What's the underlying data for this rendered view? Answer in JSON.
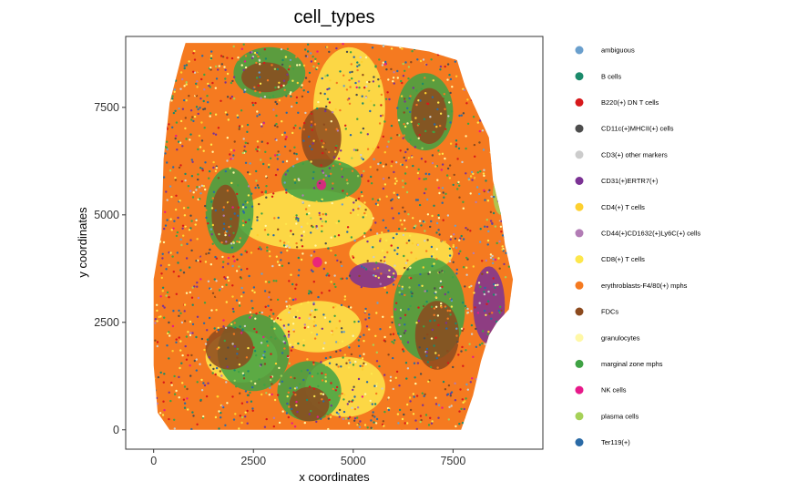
{
  "chart_data": {
    "type": "scatter",
    "title": "cell_types",
    "xlabel": "x coordinates",
    "ylabel": "y coordinates",
    "xlim": [
      -700,
      9750
    ],
    "ylim": [
      -450,
      9150
    ],
    "x_ticks": [
      0,
      2500,
      5000,
      7500
    ],
    "y_ticks": [
      0,
      2500,
      5000,
      7500
    ],
    "x_tick_labels": [
      "0",
      "2500",
      "5000",
      "7500"
    ],
    "y_tick_labels": [
      "0",
      "2500",
      "5000",
      "7500"
    ],
    "grid": false,
    "legend_position": "right",
    "legend": [
      {
        "name": "ambiguous",
        "color": "#6a9fcd"
      },
      {
        "name": "B cells",
        "color": "#1b8a6b"
      },
      {
        "name": "B220(+) DN T cells",
        "color": "#d7191c"
      },
      {
        "name": "CD11c(+)MHCII(+) cells",
        "color": "#4d4d4d"
      },
      {
        "name": "CD3(+) other markers",
        "color": "#cccccc"
      },
      {
        "name": "CD31(+)ERTR7(+)",
        "color": "#7b3294"
      },
      {
        "name": "CD4(+) T cells",
        "color": "#fdd02f"
      },
      {
        "name": "CD44(+)CD1632(+)Ly6C(+) cells",
        "color": "#b27cb5"
      },
      {
        "name": "CD8(+) T cells",
        "color": "#fde74c"
      },
      {
        "name": "erythroblasts-F4/80(+) mphs",
        "color": "#f57a20"
      },
      {
        "name": "FDCs",
        "color": "#8c4a1e"
      },
      {
        "name": "granulocytes",
        "color": "#fff8a6"
      },
      {
        "name": "marginal zone mphs",
        "color": "#3fa244"
      },
      {
        "name": "NK cells",
        "color": "#e7198a"
      },
      {
        "name": "plasma cells",
        "color": "#a6d158"
      },
      {
        "name": "Ter119(+)",
        "color": "#2a6aa6"
      }
    ],
    "tissue_outline": [
      [
        800,
        9000
      ],
      [
        4200,
        9000
      ],
      [
        5300,
        9000
      ],
      [
        6200,
        8900
      ],
      [
        6900,
        8800
      ],
      [
        7600,
        8600
      ],
      [
        7800,
        8000
      ],
      [
        8100,
        7400
      ],
      [
        8400,
        6800
      ],
      [
        8500,
        5800
      ],
      [
        8700,
        5000
      ],
      [
        8800,
        4300
      ],
      [
        9000,
        3500
      ],
      [
        8900,
        2800
      ],
      [
        8600,
        2500
      ],
      [
        8400,
        2200
      ],
      [
        8200,
        1600
      ],
      [
        8000,
        800
      ],
      [
        7700,
        0
      ],
      [
        3000,
        0
      ],
      [
        400,
        0
      ],
      [
        100,
        400
      ],
      [
        0,
        1500
      ],
      [
        0,
        3500
      ],
      [
        200,
        4600
      ],
      [
        250,
        6300
      ],
      [
        400,
        7600
      ],
      [
        700,
        8700
      ]
    ],
    "regions": [
      {
        "label": "CD8(+) T cells",
        "color": "#fde74c",
        "center": [
          3800,
          4900
        ],
        "radii": [
          1700,
          700
        ]
      },
      {
        "label": "CD8(+) T cells",
        "color": "#fde74c",
        "center": [
          4900,
          7500
        ],
        "radii": [
          900,
          1400
        ]
      },
      {
        "label": "CD8(+) T cells",
        "color": "#fde74c",
        "center": [
          4100,
          2400
        ],
        "radii": [
          1100,
          600
        ]
      },
      {
        "label": "CD8(+) T cells",
        "color": "#fde74c",
        "center": [
          6200,
          4100
        ],
        "radii": [
          1300,
          500
        ]
      },
      {
        "label": "CD8(+) T cells",
        "color": "#fde74c",
        "center": [
          4800,
          1000
        ],
        "radii": [
          1000,
          700
        ]
      },
      {
        "label": "CD8(+) T cells",
        "color": "#fde74c",
        "center": [
          2200,
          1700
        ],
        "radii": [
          900,
          600
        ]
      },
      {
        "label": "marginal zone mphs",
        "color": "#3fa244",
        "center": [
          6800,
          7400
        ],
        "radii": [
          700,
          900
        ]
      },
      {
        "label": "marginal zone mphs",
        "color": "#3fa244",
        "center": [
          2900,
          8300
        ],
        "radii": [
          900,
          600
        ]
      },
      {
        "label": "marginal zone mphs",
        "color": "#3fa244",
        "center": [
          1900,
          5100
        ],
        "radii": [
          600,
          1000
        ]
      },
      {
        "label": "marginal zone mphs",
        "color": "#3fa244",
        "center": [
          6900,
          2800
        ],
        "radii": [
          900,
          1200
        ]
      },
      {
        "label": "marginal zone mphs",
        "color": "#3fa244",
        "center": [
          2500,
          1800
        ],
        "radii": [
          900,
          900
        ]
      },
      {
        "label": "marginal zone mphs",
        "color": "#3fa244",
        "center": [
          3900,
          900
        ],
        "radii": [
          800,
          700
        ]
      },
      {
        "label": "marginal zone mphs",
        "color": "#3fa244",
        "center": [
          4200,
          5800
        ],
        "radii": [
          1000,
          500
        ]
      },
      {
        "label": "FDCs",
        "color": "#8c4a1e",
        "center": [
          1800,
          5000
        ],
        "radii": [
          350,
          700
        ]
      },
      {
        "label": "FDCs",
        "color": "#8c4a1e",
        "center": [
          2800,
          8200
        ],
        "radii": [
          600,
          350
        ]
      },
      {
        "label": "FDCs",
        "color": "#8c4a1e",
        "center": [
          6900,
          7300
        ],
        "radii": [
          450,
          650
        ]
      },
      {
        "label": "FDCs",
        "color": "#8c4a1e",
        "center": [
          4200,
          6800
        ],
        "radii": [
          500,
          700
        ]
      },
      {
        "label": "FDCs",
        "color": "#8c4a1e",
        "center": [
          7100,
          2200
        ],
        "radii": [
          550,
          800
        ]
      },
      {
        "label": "FDCs",
        "color": "#8c4a1e",
        "center": [
          1900,
          1900
        ],
        "radii": [
          600,
          500
        ]
      },
      {
        "label": "FDCs",
        "color": "#8c4a1e",
        "center": [
          3900,
          600
        ],
        "radii": [
          500,
          400
        ]
      },
      {
        "label": "CD31(+)ERTR7(+)",
        "color": "#7b3294",
        "center": [
          8400,
          2900
        ],
        "radii": [
          400,
          900
        ]
      },
      {
        "label": "CD31(+)ERTR7(+)",
        "color": "#7b3294",
        "center": [
          5500,
          3600
        ],
        "radii": [
          600,
          300
        ]
      },
      {
        "label": "NK cells",
        "color": "#e7198a",
        "center": [
          4200,
          5700
        ],
        "radii": [
          120,
          120
        ]
      },
      {
        "label": "NK cells",
        "color": "#e7198a",
        "center": [
          4100,
          3900
        ],
        "radii": [
          120,
          120
        ]
      },
      {
        "label": "plasma cells",
        "color": "#a6d158",
        "center": [
          8700,
          5500
        ],
        "radii": [
          200,
          500
        ]
      }
    ]
  }
}
